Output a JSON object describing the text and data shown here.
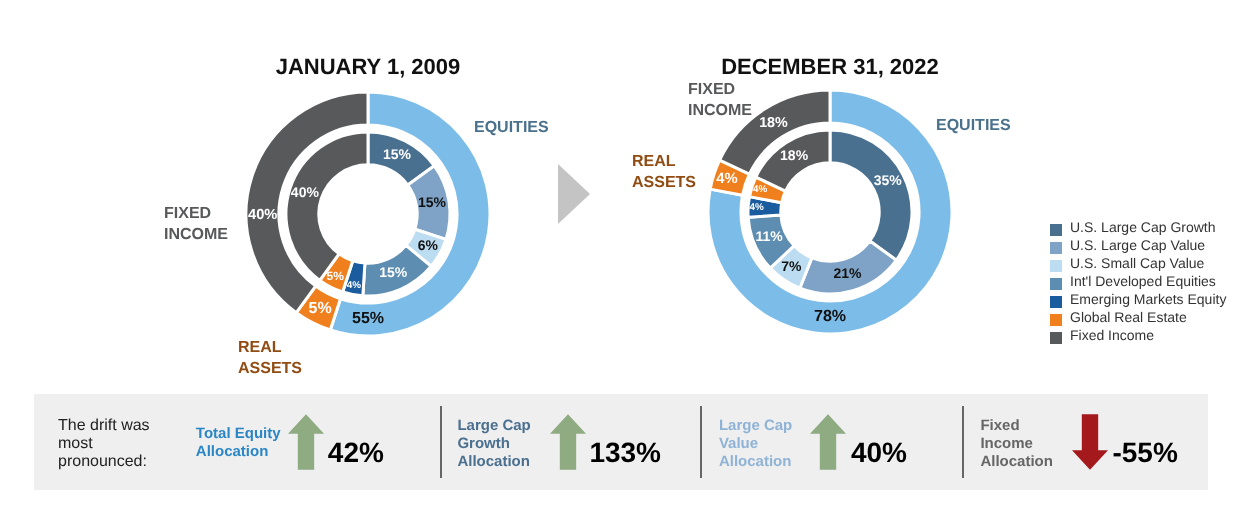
{
  "chart_data": [
    {
      "type": "donut",
      "title": "JANUARY 1, 2009",
      "categories": [
        "EQUITIES",
        "REAL ASSETS",
        "FIXED INCOME"
      ],
      "values": [
        55,
        5,
        40
      ],
      "colors": [
        "#7bbce8",
        "#f07f1e",
        "#58595b"
      ],
      "value_labels": [
        "55%",
        "5%",
        "40%"
      ]
    },
    {
      "type": "donut",
      "title": "DECEMBER 31, 2022",
      "categories": [
        "EQUITIES",
        "REAL ASSETS",
        "FIXED INCOME"
      ],
      "values": [
        78,
        4,
        18
      ],
      "colors": [
        "#7bbce8",
        "#f07f1e",
        "#58595b"
      ],
      "value_labels": [
        "78%",
        "4%",
        "18%"
      ]
    },
    {
      "type": "donut",
      "categories": [
        "U.S. Large Cap Growth",
        "U.S. Large Cap Value",
        "U.S. Small Cap Value",
        "Int'l Developed Equities",
        "Emerging Markets Equity",
        "Global Real Estate",
        "Fixed Income"
      ],
      "colors": [
        "#4a7090",
        "#7fa3c6",
        "#bcdcf2",
        "#5d8db0",
        "#1a5c9e",
        "#f07f1e",
        "#58595b"
      ],
      "legend": "right",
      "series": [
        {
          "values": [
            15,
            15,
            6,
            15,
            4,
            5,
            40
          ],
          "value_labels": [
            "15%",
            "15%",
            "6%",
            "15%",
            "4%",
            "5%",
            "40%"
          ]
        },
        {
          "values": [
            35,
            21,
            7,
            11,
            4,
            4,
            18
          ],
          "value_labels": [
            "35%",
            "21%",
            "7%",
            "11%",
            "4%",
            "4%",
            "18%"
          ]
        }
      ]
    },
    {
      "type": "other",
      "annotations": [
        "The drift was most pronounced:"
      ],
      "categories": [
        "Total Equity Allocation",
        "Large Cap Growth Allocation",
        "Large Cap Value Allocation",
        "Fixed Income Allocation"
      ],
      "values": [
        42,
        133,
        40,
        -55
      ],
      "value_labels": [
        "42%",
        "133%",
        "40%",
        "-55%"
      ]
    }
  ]
}
